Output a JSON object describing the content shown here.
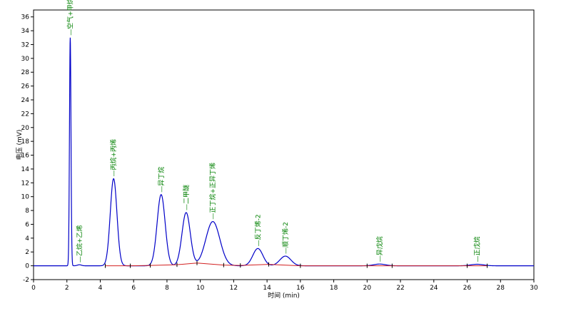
{
  "chart_data": {
    "type": "line",
    "xlabel": "时间 (min)",
    "ylabel": "电压 (mV)",
    "xlim": [
      0,
      30
    ],
    "ylim": [
      -2,
      37
    ],
    "x_ticks": [
      "0",
      "2",
      "4",
      "6",
      "8",
      "10",
      "12",
      "14",
      "16",
      "18",
      "20",
      "22",
      "24",
      "26",
      "28",
      "30"
    ],
    "y_ticks": [
      "-2",
      "0",
      "2",
      "4",
      "6",
      "8",
      "10",
      "12",
      "14",
      "16",
      "18",
      "20",
      "22",
      "24",
      "26",
      "28",
      "30",
      "32",
      "34",
      "36"
    ],
    "colors": {
      "signal": "#0000c8",
      "baseline": "#d22020",
      "labels": "#008000",
      "axis": "#000000"
    },
    "grid": false,
    "series": [
      {
        "role": "signal",
        "peaks": [
          {
            "rt": 2.2,
            "height": 33.0,
            "width": 0.045,
            "label": "空气+甲烷"
          },
          {
            "rt": 2.75,
            "height": 0.15,
            "width": 0.12,
            "label": "乙烷+乙烯"
          },
          {
            "rt": 4.8,
            "height": 12.6,
            "width": 0.2,
            "label": "丙烷+丙烯"
          },
          {
            "rt": 7.65,
            "height": 10.3,
            "width": 0.24,
            "label": "异丁烷"
          },
          {
            "rt": 9.15,
            "height": 7.7,
            "width": 0.25,
            "label": "二甲醚"
          },
          {
            "rt": 10.75,
            "height": 6.4,
            "width": 0.42,
            "label": "正丁烷+正异丁烯"
          },
          {
            "rt": 13.45,
            "height": 2.5,
            "width": 0.3,
            "label": "反丁烯-2"
          },
          {
            "rt": 15.1,
            "height": 1.4,
            "width": 0.33,
            "label": "顺丁烯-2"
          },
          {
            "rt": 20.75,
            "height": 0.25,
            "width": 0.35,
            "label": "异戊烷"
          },
          {
            "rt": 26.6,
            "height": 0.22,
            "width": 0.38,
            "label": "正戊烷"
          }
        ]
      },
      {
        "role": "baseline",
        "points": [
          [
            4.3,
            0.0
          ],
          [
            5.8,
            0.0
          ],
          [
            7.0,
            0.05
          ],
          [
            8.6,
            0.15
          ],
          [
            9.8,
            0.4
          ],
          [
            11.4,
            0.1
          ],
          [
            12.4,
            0.05
          ],
          [
            14.1,
            0.2
          ],
          [
            16.0,
            0.0
          ],
          [
            20.0,
            0.0
          ],
          [
            21.5,
            0.0
          ],
          [
            26.0,
            0.0
          ],
          [
            27.2,
            0.0
          ]
        ]
      }
    ]
  }
}
